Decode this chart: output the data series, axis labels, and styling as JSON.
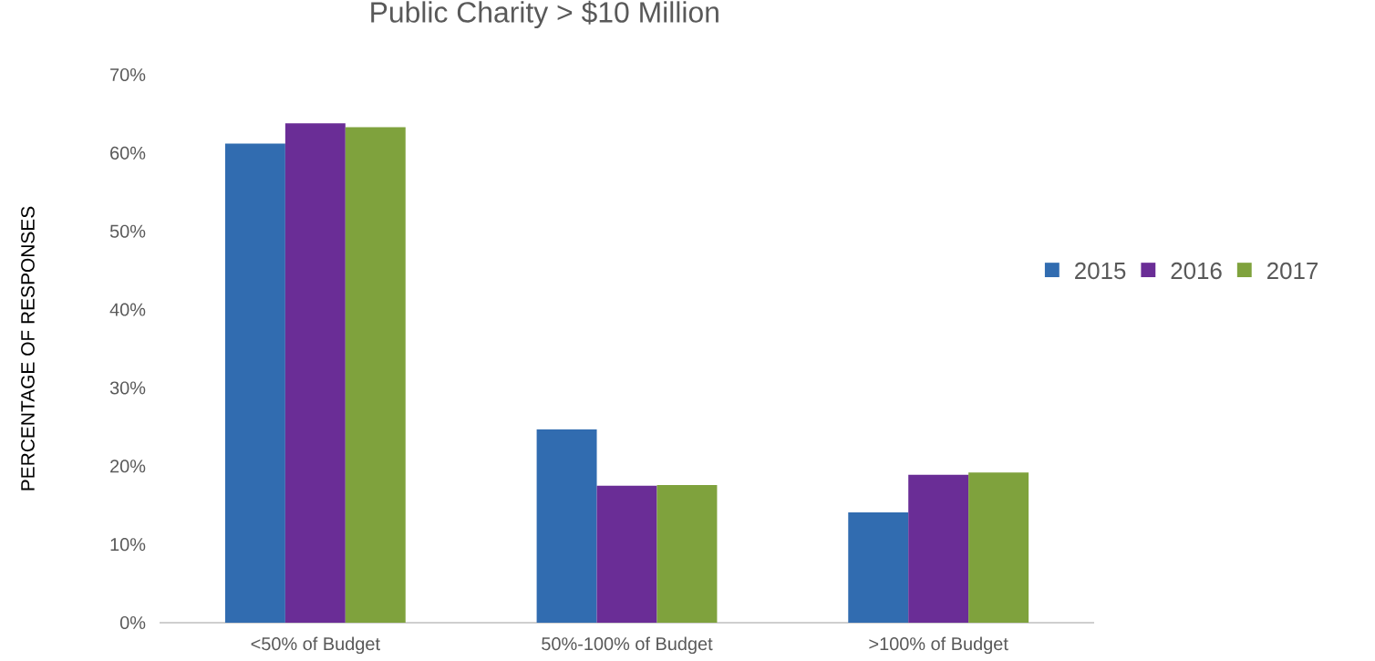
{
  "chart_data": {
    "type": "bar",
    "title": "Public Charity > $10 Million",
    "ylabel": "PERCENTAGE OF RESPONSES",
    "categories": [
      "<50% of Budget",
      "50%-100% of Budget",
      ">100% of Budget"
    ],
    "series": [
      {
        "name": "2015",
        "color": "#316cb0",
        "values": [
          61.2,
          24.7,
          14.1
        ]
      },
      {
        "name": "2016",
        "color": "#6a2d96",
        "values": [
          63.8,
          17.5,
          18.9
        ]
      },
      {
        "name": "2017",
        "color": "#7fa23d",
        "values": [
          63.3,
          17.6,
          19.2
        ]
      }
    ],
    "ylim": [
      0,
      70
    ],
    "yticks": [
      {
        "value": 0,
        "label": "0%"
      },
      {
        "value": 10,
        "label": "10%"
      },
      {
        "value": 20,
        "label": "20%"
      },
      {
        "value": 30,
        "label": "30%"
      },
      {
        "value": 40,
        "label": "40%"
      },
      {
        "value": 50,
        "label": "50%"
      },
      {
        "value": 60,
        "label": "60%"
      },
      {
        "value": 70,
        "label": "70%"
      }
    ],
    "grid": false,
    "legend": "right"
  }
}
